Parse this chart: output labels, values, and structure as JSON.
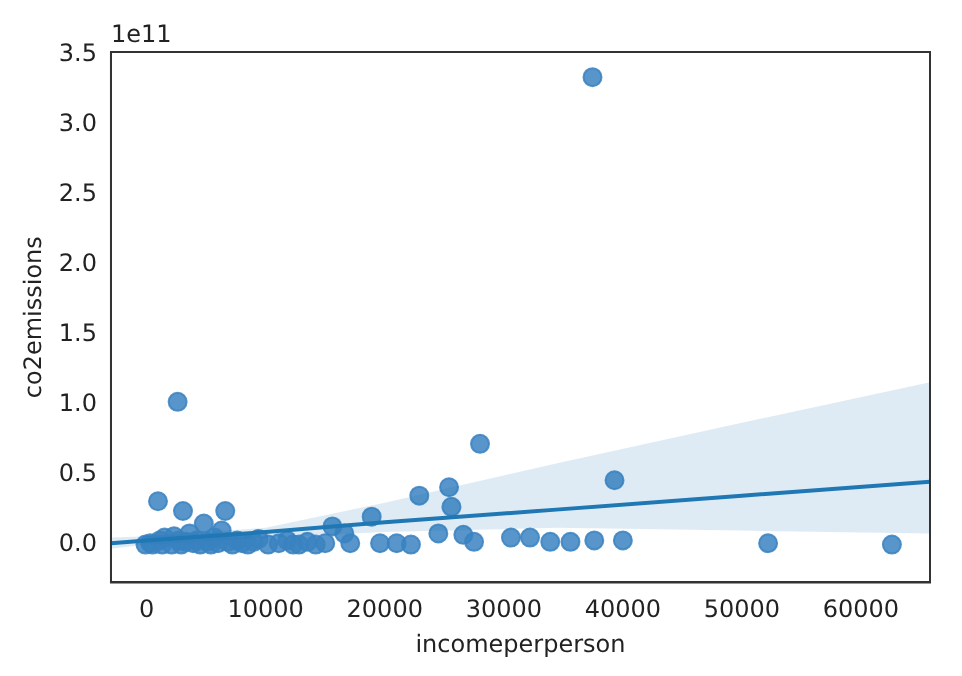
{
  "chart_data": {
    "type": "scatter",
    "xlabel": "incomeperperson",
    "ylabel": "co2emissions",
    "annotations": [
      "1e11"
    ],
    "xlim": [
      -3000,
      65800
    ],
    "xticks": [
      0,
      10000,
      20000,
      30000,
      40000,
      50000,
      60000
    ],
    "ylim": [
      -0.27,
      3.52
    ],
    "yticks": [
      {
        "value": 0,
        "label": "0.0"
      },
      {
        "value": 0.5,
        "label": "0.5"
      },
      {
        "value": 1,
        "label": "1.0"
      },
      {
        "value": 1.5,
        "label": "1.5"
      },
      {
        "value": 2,
        "label": "2.0"
      },
      {
        "value": 2.5,
        "label": "2.5"
      },
      {
        "value": 3,
        "label": "3.0"
      },
      {
        "value": 3.5,
        "label": "3.5"
      }
    ],
    "grid": false,
    "legend": false,
    "series": [
      {
        "marker": "circle",
        "color": "#3a83c1",
        "x": [
          -100,
          300,
          500,
          950,
          1100,
          1300,
          1500,
          2100,
          2300,
          2600,
          2700,
          2900,
          3050,
          3300,
          3600,
          3900,
          4200,
          4500,
          4800,
          5100,
          5400,
          5700,
          6000,
          6300,
          6600,
          6800,
          7200,
          7600,
          8000,
          8500,
          9000,
          9400,
          10200,
          11100,
          11800,
          12300,
          12800,
          13500,
          14200,
          15000,
          15600,
          16600,
          17100,
          18900,
          19600,
          21000,
          22200,
          22900,
          24500,
          25400,
          25600,
          26600,
          27500,
          28000,
          30600,
          32200,
          33900,
          35600,
          37450,
          37600,
          39300,
          40000,
          52200,
          62600
        ],
        "values": [
          0.0,
          0.01,
          0.0,
          0.31,
          0.03,
          0.0,
          0.05,
          0.0,
          0.06,
          1.02,
          0.03,
          0.0,
          0.24,
          0.02,
          0.08,
          0.01,
          0.03,
          0.0,
          0.15,
          0.02,
          0.0,
          0.05,
          0.01,
          0.1,
          0.24,
          0.02,
          0.0,
          0.03,
          0.01,
          0.0,
          0.02,
          0.04,
          0.0,
          0.01,
          0.03,
          0.0,
          0.0,
          0.02,
          0.0,
          0.01,
          0.13,
          0.08,
          0.01,
          0.2,
          0.01,
          0.01,
          0.0,
          0.35,
          0.08,
          0.41,
          0.27,
          0.07,
          0.02,
          0.72,
          0.05,
          0.05,
          0.02,
          0.02,
          3.34,
          0.03,
          0.46,
          0.03,
          0.01,
          0.0
        ]
      },
      {
        "type": "line",
        "marker": "none",
        "color": "#1f77b4",
        "x": [
          -3000,
          0,
          10000,
          20000,
          34400,
          50000,
          65800
        ],
        "values": [
          0.01,
          0.03,
          0.09,
          0.16,
          0.25,
          0.35,
          0.45
        ],
        "lower": [
          -0.03,
          0.0,
          0.05,
          0.09,
          0.12,
          0.1,
          0.08
        ],
        "upper": [
          0.05,
          0.06,
          0.12,
          0.3,
          0.58,
          0.87,
          1.16
        ]
      }
    ]
  }
}
